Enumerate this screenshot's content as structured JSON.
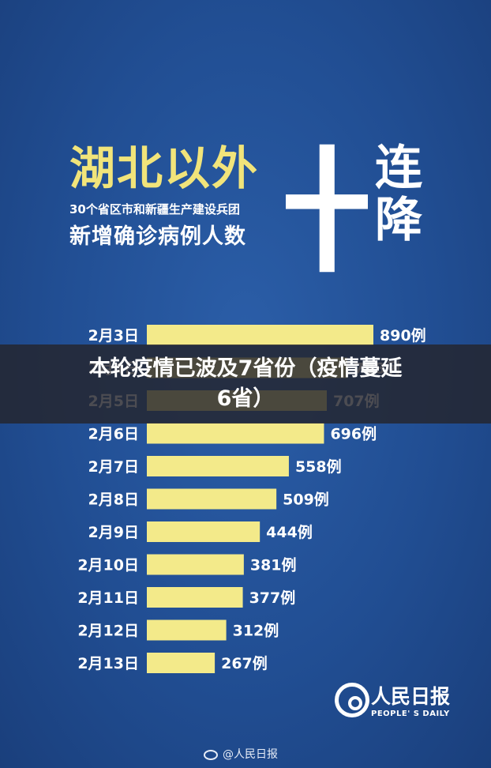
{
  "poster": {
    "title_main": "湖北以外",
    "title_sub1": "30个省区市和新疆生产建设兵团",
    "title_sub2": "新增确诊病例人数",
    "big_char": "十",
    "side_chars": [
      "连",
      "降"
    ]
  },
  "overlay": {
    "line1": "本轮疫情已波及7省份（疫情蔓延",
    "line2": "6省）"
  },
  "logo": {
    "cn": "人民日报",
    "en": "PEOPLE' S DAILY"
  },
  "watermark": {
    "text": "@人民日报"
  },
  "colors": {
    "background": "#214e93",
    "bar": "#f3ea8a",
    "title_accent": "#f1e47a",
    "text": "#ffffff"
  },
  "chart_data": {
    "type": "bar",
    "orientation": "horizontal",
    "categories": [
      "2月3日",
      "2月4日",
      "2月5日",
      "2月6日",
      "2月7日",
      "2月8日",
      "2月9日",
      "2月10日",
      "2月11日",
      "2月12日",
      "2月13日"
    ],
    "values": [
      890,
      788,
      707,
      696,
      558,
      509,
      444,
      381,
      377,
      312,
      267
    ],
    "value_labels": [
      "890例",
      "788例",
      "707例",
      "696例",
      "558例",
      "509例",
      "444例",
      "381例",
      "377例",
      "312例",
      "267例"
    ],
    "xlim": [
      0,
      1000
    ],
    "grid": false,
    "legend": "none"
  }
}
